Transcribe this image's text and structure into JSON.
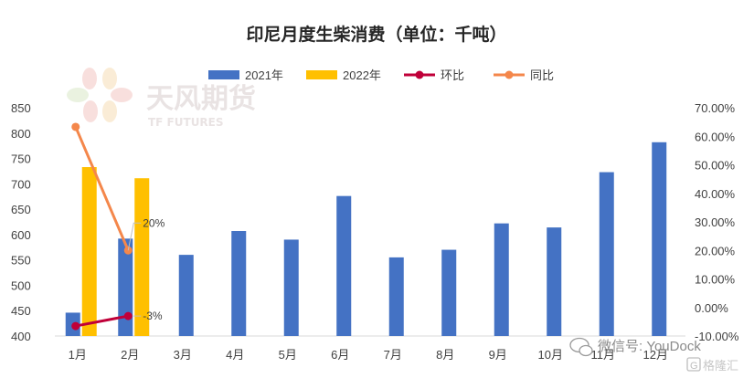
{
  "chart_data": {
    "type": "bar",
    "title": "印尼月度生柴消费（单位：千吨）",
    "categories": [
      "1月",
      "2月",
      "3月",
      "4月",
      "5月",
      "6月",
      "7月",
      "8月",
      "9月",
      "10月",
      "11月",
      "12月"
    ],
    "series": [
      {
        "name": "2021年",
        "kind": "bar",
        "axis": "left",
        "color": "#4472C4",
        "values": [
          446,
          592,
          560,
          607,
          590,
          676,
          555,
          570,
          622,
          614,
          723,
          782
        ]
      },
      {
        "name": "2022年",
        "kind": "bar",
        "axis": "left",
        "color": "#FFC000",
        "values": [
          733,
          711,
          null,
          null,
          null,
          null,
          null,
          null,
          null,
          null,
          null,
          null
        ]
      },
      {
        "name": "环比",
        "kind": "line",
        "axis": "right",
        "color": "#C00039",
        "values": [
          -6.5,
          -3,
          null,
          null,
          null,
          null,
          null,
          null,
          null,
          null,
          null,
          null
        ]
      },
      {
        "name": "同比",
        "kind": "line",
        "axis": "right",
        "color": "#F4874B",
        "values": [
          63.3,
          20,
          null,
          null,
          null,
          null,
          null,
          null,
          null,
          null,
          null,
          null
        ]
      }
    ],
    "y_left": {
      "min": 400,
      "max": 850,
      "step": 50,
      "ticks": [
        "400",
        "450",
        "500",
        "550",
        "600",
        "650",
        "700",
        "750",
        "800",
        "850"
      ]
    },
    "y_right": {
      "min": -10,
      "max": 70,
      "step": 10,
      "ticks": [
        "-10.00%",
        "0.00%",
        "10.00%",
        "20.00%",
        "30.00%",
        "40.00%",
        "50.00%",
        "60.00%",
        "70.00%"
      ]
    },
    "annotations": [
      {
        "series": "同比",
        "index": 1,
        "text": "20%"
      },
      {
        "series": "环比",
        "index": 1,
        "text": "-3%"
      }
    ],
    "legend_position": "top",
    "grid": false
  },
  "watermark": {
    "brand_cn": "天风期货",
    "brand_en": "TF FUTURES"
  },
  "footer": {
    "wechat": "微信号: YouDock",
    "source_badge": "格隆汇"
  }
}
